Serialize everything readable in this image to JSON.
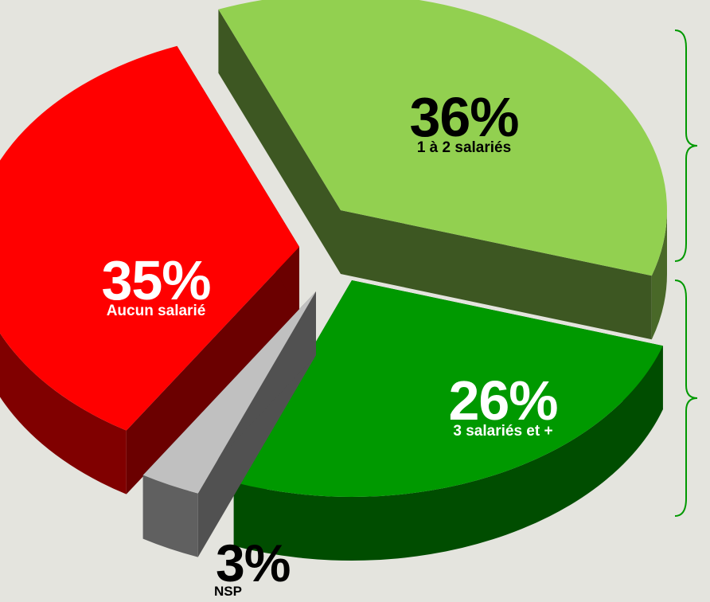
{
  "chart_data": {
    "type": "pie",
    "is_3d": true,
    "exploded": true,
    "slices": [
      {
        "label": "1 à 2 salariés",
        "value": 36,
        "display": "36%",
        "color": "#92d050"
      },
      {
        "label": "3 salariés et +",
        "value": 26,
        "display": "26%",
        "color": "#009900"
      },
      {
        "label": "NSP",
        "value": 3,
        "display": "3%",
        "color": "#c0c0c0"
      },
      {
        "label": "Aucun salarié",
        "value": 35,
        "display": "35%",
        "color": "#ff0000"
      }
    ],
    "brackets": [
      {
        "spans": [
          "1 à 2 salariés"
        ],
        "color": "#009900"
      },
      {
        "spans": [
          "3 salariés et +"
        ],
        "color": "#009900"
      }
    ]
  },
  "colors": {
    "background": "#e4e4de",
    "label_dark": "#000000",
    "label_light": "#ffffff"
  }
}
